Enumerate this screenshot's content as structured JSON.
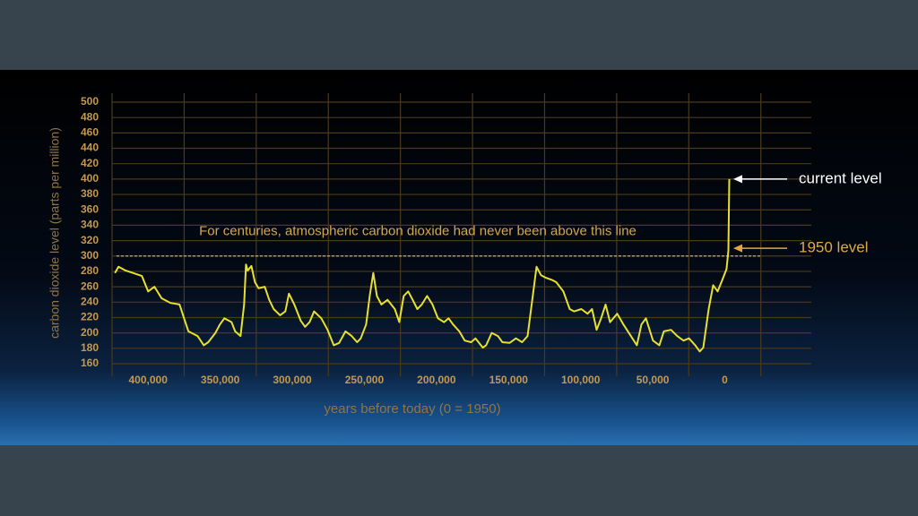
{
  "chart_data": {
    "type": "line",
    "y_label": "carbon dioxide level (parts per million)",
    "x_label": "years before today (0 = 1950)",
    "xlim": [
      425000,
      -60000
    ],
    "ylim": [
      160,
      500
    ],
    "xticks": [
      {
        "value": 400000,
        "label": "400,000"
      },
      {
        "value": 350000,
        "label": "350,000"
      },
      {
        "value": 300000,
        "label": "300,000"
      },
      {
        "value": 250000,
        "label": "250,000"
      },
      {
        "value": 200000,
        "label": "200,000"
      },
      {
        "value": 150000,
        "label": "150,000"
      },
      {
        "value": 100000,
        "label": "100,000"
      },
      {
        "value": 50000,
        "label": "50,000"
      },
      0
    ],
    "xgrid": [
      425000,
      375000,
      325000,
      275000,
      225000,
      175000,
      125000,
      75000,
      25000,
      -25000
    ],
    "yticks": [
      160,
      180,
      200,
      220,
      240,
      260,
      280,
      300,
      320,
      340,
      360,
      380,
      400,
      420,
      440,
      460,
      480,
      500
    ],
    "grid": true,
    "reference_line": {
      "value": 300,
      "label": "For centuries, atmospheric carbon dioxide had never been above this line"
    },
    "annotations": [
      {
        "text": "current level",
        "value": 400,
        "color": "#ffffff"
      },
      {
        "text": "1950 level",
        "value": 310,
        "color": "#e0a845"
      }
    ],
    "x": [
      423000,
      420500,
      415500,
      410500,
      404300,
      400000,
      395600,
      390600,
      384400,
      378200,
      375100,
      372000,
      365700,
      361400,
      358300,
      353300,
      350200,
      347100,
      342100,
      339600,
      335900,
      333400,
      332100,
      330900,
      328400,
      325900,
      323400,
      319100,
      316000,
      312900,
      308500,
      304800,
      302300,
      298600,
      294200,
      291100,
      288000,
      284900,
      279900,
      275500,
      271200,
      267500,
      263100,
      258800,
      255000,
      252500,
      248800,
      246300,
      243800,
      241300,
      238200,
      233900,
      228900,
      225800,
      222700,
      219600,
      216500,
      213300,
      210200,
      206500,
      202800,
      199000,
      194700,
      191600,
      188500,
      184100,
      180400,
      176000,
      172900,
      167900,
      165500,
      161700,
      157400,
      154300,
      149300,
      144900,
      140600,
      136800,
      134400,
      130600,
      127500,
      124400,
      120000,
      116900,
      112000,
      107600,
      104500,
      99500,
      95200,
      92100,
      88900,
      85800,
      82700,
      79600,
      74600,
      70300,
      64100,
      61000,
      57800,
      54700,
      49800,
      45400,
      42300,
      37300,
      33000,
      28600,
      24900,
      20500,
      17400,
      14900,
      11200,
      8100,
      5000,
      1900,
      -1200,
      -2500,
      -3100
    ],
    "series": [
      {
        "color": "#e8e030",
        "values": [
          278,
          286,
          281,
          278,
          274,
          254,
          260,
          245,
          239,
          237,
          219,
          202,
          196,
          184,
          188,
          200,
          211,
          219,
          214,
          202,
          196,
          237,
          289,
          281,
          287,
          266,
          258,
          260,
          243,
          231,
          223,
          228,
          251,
          237,
          216,
          208,
          214,
          228,
          219,
          204,
          184,
          187,
          202,
          196,
          188,
          193,
          211,
          248,
          278,
          248,
          237,
          243,
          231,
          214,
          248,
          254,
          243,
          231,
          237,
          248,
          237,
          219,
          214,
          219,
          211,
          202,
          190,
          188,
          193,
          181,
          184,
          200,
          196,
          188,
          187,
          193,
          188,
          196,
          231,
          286,
          275,
          272,
          269,
          266,
          254,
          231,
          228,
          231,
          225,
          231,
          204,
          219,
          237,
          214,
          225,
          211,
          193,
          184,
          211,
          219,
          190,
          184,
          202,
          204,
          196,
          190,
          193,
          184,
          176,
          181,
          231,
          262,
          254,
          268,
          283,
          307,
          400
        ]
      }
    ]
  }
}
